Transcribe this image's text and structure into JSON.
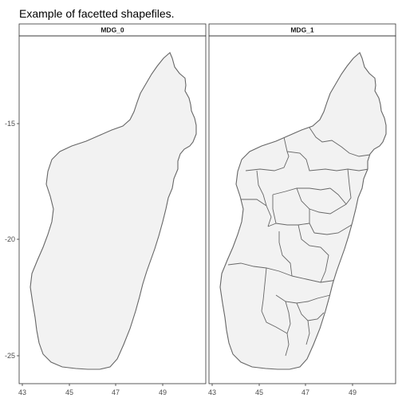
{
  "title": "Example of facetted shapefiles.",
  "colors": {
    "land_fill": "#f2f2f2",
    "border": "#666666",
    "panel_border": "#333333"
  },
  "chart_data": {
    "type": "map",
    "title": "Example of facetted shapefiles.",
    "facets": [
      {
        "name": "MDG_0",
        "level": "country outline"
      },
      {
        "name": "MDG_1",
        "level": "administrative regions"
      }
    ],
    "x_ticks": [
      "43",
      "45",
      "47",
      "49"
    ],
    "y_ticks": [
      "-15",
      "-20",
      "-25"
    ],
    "xlim": [
      42.9,
      50.6
    ],
    "ylim": [
      -25.8,
      -11.7
    ],
    "grid": false
  }
}
